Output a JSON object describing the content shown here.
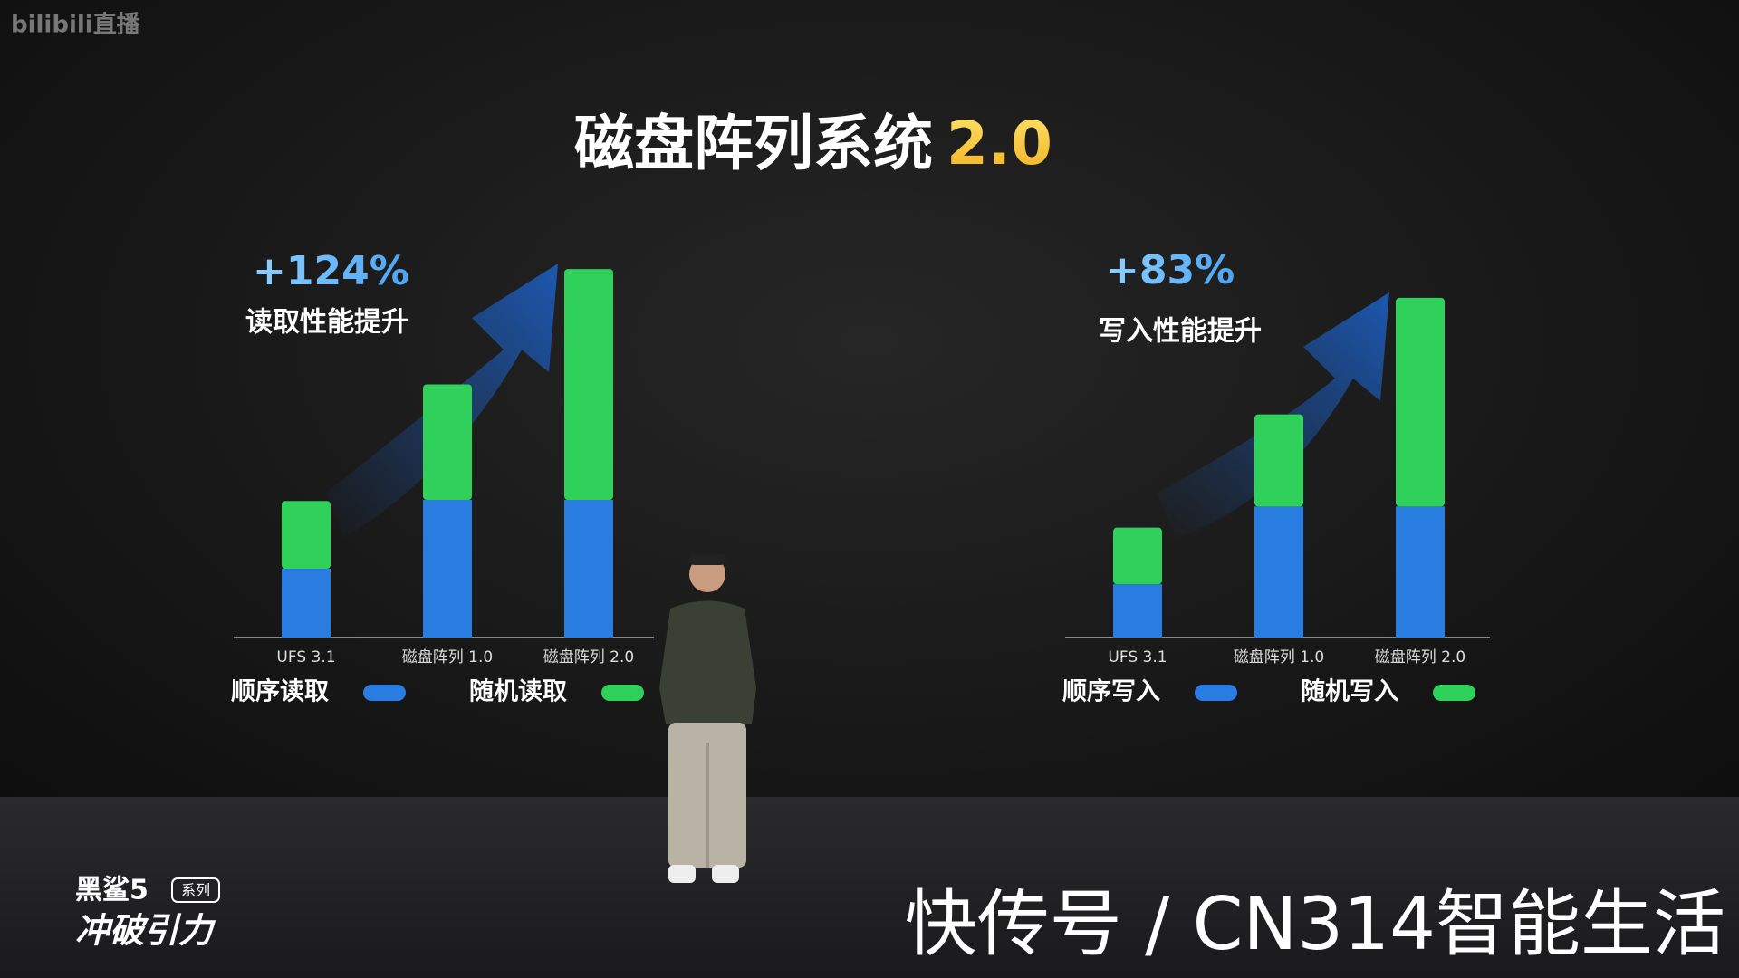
{
  "slide": {
    "title": "磁盘阵列系统",
    "version": "2.0"
  },
  "logo": "bilibili直播",
  "brand": {
    "name": "黑鲨5",
    "tag": "系列",
    "slogan": "冲破引力"
  },
  "watermark": "快传号 / CN314智能生活",
  "chart_data": [
    {
      "type": "stacked_bar",
      "annotation": "+124%",
      "subtitle": "读取性能提升",
      "categories": [
        "UFS 3.1",
        "磁盘阵列 1.0",
        "磁盘阵列 2.0"
      ],
      "ylim": [
        0,
        350
      ],
      "series": [
        {
          "name": "顺序读取",
          "color": "#2a7de0",
          "values": [
            62,
            124,
            124
          ]
        },
        {
          "name": "随机读取",
          "color": "#2fd15a",
          "values": [
            61,
            104,
            208
          ]
        }
      ]
    },
    {
      "type": "stacked_bar",
      "annotation": "+83%",
      "subtitle": "写入性能提升",
      "categories": [
        "UFS 3.1",
        "磁盘阵列 1.0",
        "磁盘阵列 2.0"
      ],
      "ylim": [
        0,
        350
      ],
      "series": [
        {
          "name": "顺序写入",
          "color": "#2a7de0",
          "values": [
            48,
            118,
            118
          ]
        },
        {
          "name": "随机写入",
          "color": "#2fd15a",
          "values": [
            51,
            83,
            188
          ]
        }
      ]
    }
  ]
}
